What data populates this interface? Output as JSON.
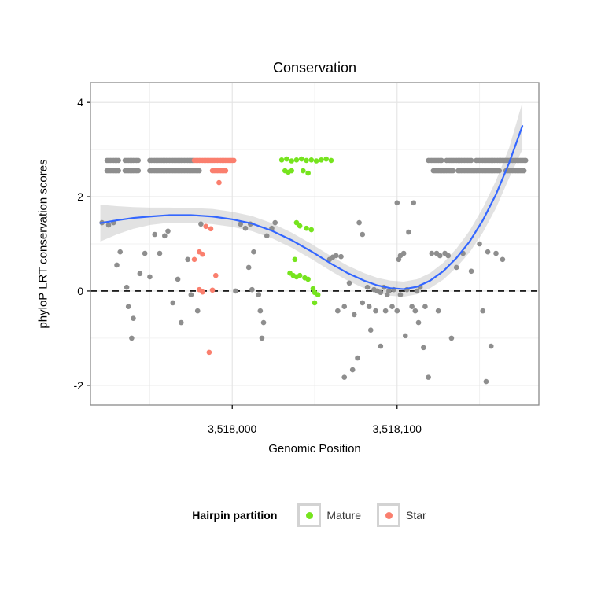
{
  "title": "Conservation",
  "axes": {
    "x": {
      "label": "Genomic Position",
      "ticks": [
        3518000,
        3518100
      ],
      "tick_labels": [
        "3,518,000",
        "3,518,100"
      ],
      "minor_ticks": [
        3517950,
        3518050,
        3518150
      ]
    },
    "y": {
      "label": "phyloP LRT conservation scores",
      "ticks": [
        -2,
        0,
        2,
        4
      ],
      "tick_labels": [
        "-2",
        "0",
        "2",
        "4"
      ],
      "minor_ticks": [
        -1,
        1,
        3
      ]
    }
  },
  "legend": {
    "title": "Hairpin partition",
    "items": [
      {
        "label": "Mature",
        "color": "#76E41E"
      },
      {
        "label": "Star",
        "color": "#FA7F6E"
      }
    ]
  },
  "chart_data": {
    "type": "scatter",
    "title": "Conservation",
    "xlabel": "Genomic Position",
    "ylabel": "phyloP LRT conservation scores",
    "xlim": [
      3517914,
      3518186
    ],
    "ylim": [
      -2.42,
      4.42
    ],
    "grid": true,
    "legend_position": "bottom",
    "reference_line": {
      "y": 0,
      "style": "dashed",
      "color": "#000000"
    },
    "style": {
      "panel_bg": "#FFFFFF",
      "panel_border": "#8A8A8A",
      "grid_major": "#E4E4E4",
      "grid_minor": "#F2F2F2",
      "tick_color": "#000000"
    },
    "series": [
      {
        "name": "unpartitioned",
        "label": "",
        "color": "#8E8E8E",
        "runs": [
          {
            "y": 2.77,
            "x_start": 3517924,
            "x_end": 3517931,
            "step": 1
          },
          {
            "y": 2.77,
            "x_start": 3517935,
            "x_end": 3517943,
            "step": 1
          },
          {
            "y": 2.77,
            "x_start": 3517950,
            "x_end": 3517976,
            "step": 1
          },
          {
            "y": 2.77,
            "x_start": 3518119,
            "x_end": 3518127,
            "step": 1
          },
          {
            "y": 2.77,
            "x_start": 3518130,
            "x_end": 3518145,
            "step": 1
          },
          {
            "y": 2.77,
            "x_start": 3518148,
            "x_end": 3518178,
            "step": 1
          },
          {
            "y": 2.55,
            "x_start": 3517924,
            "x_end": 3517931,
            "step": 1
          },
          {
            "y": 2.55,
            "x_start": 3517935,
            "x_end": 3517943,
            "step": 1
          },
          {
            "y": 2.55,
            "x_start": 3517950,
            "x_end": 3517980,
            "step": 1
          },
          {
            "y": 2.55,
            "x_start": 3518122,
            "x_end": 3518134,
            "step": 1
          },
          {
            "y": 2.55,
            "x_start": 3518137,
            "x_end": 3518162,
            "step": 1
          },
          {
            "y": 2.55,
            "x_start": 3518166,
            "x_end": 3518177,
            "step": 1
          }
        ],
        "points": [
          [
            3517921,
            1.45
          ],
          [
            3517925,
            1.4
          ],
          [
            3517928,
            1.45
          ],
          [
            3517930,
            0.55
          ],
          [
            3517932,
            0.83
          ],
          [
            3517936,
            0.08
          ],
          [
            3517937,
            -0.33
          ],
          [
            3517939,
            -1.0
          ],
          [
            3517940,
            -0.58
          ],
          [
            3517944,
            0.37
          ],
          [
            3517947,
            0.8
          ],
          [
            3517950,
            0.3
          ],
          [
            3517953,
            1.2
          ],
          [
            3517956,
            0.8
          ],
          [
            3517959,
            1.17
          ],
          [
            3517961,
            1.27
          ],
          [
            3517964,
            -0.25
          ],
          [
            3517967,
            0.25
          ],
          [
            3517969,
            -0.67
          ],
          [
            3517973,
            0.67
          ],
          [
            3517975,
            -0.08
          ],
          [
            3517979,
            -0.42
          ],
          [
            3517981,
            1.42
          ],
          [
            3518002,
            0.0
          ],
          [
            3518005,
            1.42
          ],
          [
            3518008,
            1.33
          ],
          [
            3518010,
            0.5
          ],
          [
            3518011,
            1.42
          ],
          [
            3518012,
            0.03
          ],
          [
            3518013,
            0.83
          ],
          [
            3518016,
            -0.08
          ],
          [
            3518017,
            -0.42
          ],
          [
            3518018,
            -1.0
          ],
          [
            3518019,
            -0.67
          ],
          [
            3518021,
            1.17
          ],
          [
            3518024,
            1.33
          ],
          [
            3518026,
            1.45
          ],
          [
            3518059,
            0.67
          ],
          [
            3518061,
            0.72
          ],
          [
            3518063,
            0.75
          ],
          [
            3518064,
            -0.42
          ],
          [
            3518066,
            0.73
          ],
          [
            3518068,
            -0.33
          ],
          [
            3518068,
            -1.83
          ],
          [
            3518071,
            0.17
          ],
          [
            3518073,
            -1.67
          ],
          [
            3518074,
            -0.5
          ],
          [
            3518076,
            -1.42
          ],
          [
            3518077,
            1.45
          ],
          [
            3518079,
            -0.25
          ],
          [
            3518079,
            1.2
          ],
          [
            3518082,
            0.08
          ],
          [
            3518083,
            -0.33
          ],
          [
            3518084,
            -0.83
          ],
          [
            3518086,
            0.03
          ],
          [
            3518087,
            -0.42
          ],
          [
            3518088,
            0.0
          ],
          [
            3518090,
            -1.17
          ],
          [
            3518090,
            -0.03
          ],
          [
            3518092,
            0.08
          ],
          [
            3518093,
            -0.42
          ],
          [
            3518094,
            -0.08
          ],
          [
            3518095,
            0.0
          ],
          [
            3518097,
            -0.33
          ],
          [
            3518098,
            0.03
          ],
          [
            3518100,
            -0.42
          ],
          [
            3518100,
            1.87
          ],
          [
            3518101,
            0.67
          ],
          [
            3518102,
            -0.08
          ],
          [
            3518102,
            0.75
          ],
          [
            3518104,
            0.8
          ],
          [
            3518105,
            -0.95
          ],
          [
            3518106,
            0.03
          ],
          [
            3518107,
            1.25
          ],
          [
            3518109,
            -0.33
          ],
          [
            3518110,
            1.87
          ],
          [
            3518111,
            -0.42
          ],
          [
            3518112,
            0.0
          ],
          [
            3518113,
            -0.67
          ],
          [
            3518114,
            0.08
          ],
          [
            3518116,
            -1.2
          ],
          [
            3518117,
            -0.33
          ],
          [
            3518119,
            -1.83
          ],
          [
            3518121,
            0.8
          ],
          [
            3518124,
            0.8
          ],
          [
            3518125,
            -0.42
          ],
          [
            3518126,
            0.75
          ],
          [
            3518129,
            0.8
          ],
          [
            3518131,
            0.75
          ],
          [
            3518133,
            -1.0
          ],
          [
            3518136,
            0.5
          ],
          [
            3518140,
            0.8
          ],
          [
            3518145,
            0.42
          ],
          [
            3518150,
            1.0
          ],
          [
            3518152,
            -0.42
          ],
          [
            3518154,
            -1.92
          ],
          [
            3518155,
            0.83
          ],
          [
            3518157,
            -1.17
          ],
          [
            3518160,
            0.8
          ],
          [
            3518164,
            0.67
          ]
        ]
      },
      {
        "name": "mature",
        "label": "Mature",
        "color": "#76E41E",
        "runs": [],
        "points": [
          [
            3518030,
            2.78
          ],
          [
            3518033,
            2.8
          ],
          [
            3518036,
            2.76
          ],
          [
            3518039,
            2.78
          ],
          [
            3518042,
            2.8
          ],
          [
            3518045,
            2.77
          ],
          [
            3518048,
            2.78
          ],
          [
            3518051,
            2.76
          ],
          [
            3518054,
            2.78
          ],
          [
            3518057,
            2.8
          ],
          [
            3518060,
            2.77
          ],
          [
            3518032,
            2.55
          ],
          [
            3518034,
            2.52
          ],
          [
            3518036,
            2.55
          ],
          [
            3518043,
            2.55
          ],
          [
            3518046,
            2.5
          ],
          [
            3518039,
            1.45
          ],
          [
            3518041,
            1.38
          ],
          [
            3518045,
            1.33
          ],
          [
            3518048,
            1.3
          ],
          [
            3518038,
            0.67
          ],
          [
            3518035,
            0.38
          ],
          [
            3518037,
            0.33
          ],
          [
            3518039,
            0.3
          ],
          [
            3518041,
            0.33
          ],
          [
            3518044,
            0.28
          ],
          [
            3518046,
            0.25
          ],
          [
            3518049,
            0.05
          ],
          [
            3518050,
            -0.03
          ],
          [
            3518050,
            -0.25
          ],
          [
            3518052,
            -0.08
          ]
        ]
      },
      {
        "name": "star",
        "label": "Star",
        "color": "#FA7F6E",
        "runs": [
          {
            "y": 2.77,
            "x_start": 3517977,
            "x_end": 3518001,
            "step": 1
          },
          {
            "y": 2.55,
            "x_start": 3517988,
            "x_end": 3517996,
            "step": 1
          }
        ],
        "points": [
          [
            3517992,
            2.3
          ],
          [
            3517984,
            1.37
          ],
          [
            3517987,
            1.32
          ],
          [
            3517980,
            0.83
          ],
          [
            3517982,
            0.78
          ],
          [
            3517977,
            0.67
          ],
          [
            3517990,
            0.33
          ],
          [
            3517980,
            0.03
          ],
          [
            3517982,
            -0.02
          ],
          [
            3517988,
            0.02
          ],
          [
            3517986,
            -1.3
          ]
        ]
      }
    ],
    "smooth": {
      "name": "loess-fit",
      "color": "#3366FF",
      "width": 2.2,
      "ribbon_color": "#BEBEBE",
      "ribbon_opacity": 0.45,
      "points": [
        [
          3517920,
          1.44
        ],
        [
          3517930,
          1.5
        ],
        [
          3517940,
          1.55
        ],
        [
          3517950,
          1.58
        ],
        [
          3517962,
          1.61
        ],
        [
          3517975,
          1.61
        ],
        [
          3517988,
          1.58
        ],
        [
          3518000,
          1.52
        ],
        [
          3518012,
          1.43
        ],
        [
          3518024,
          1.28
        ],
        [
          3518036,
          1.08
        ],
        [
          3518048,
          0.84
        ],
        [
          3518060,
          0.58
        ],
        [
          3518070,
          0.38
        ],
        [
          3518080,
          0.22
        ],
        [
          3518088,
          0.12
        ],
        [
          3518096,
          0.06
        ],
        [
          3518104,
          0.04
        ],
        [
          3518112,
          0.09
        ],
        [
          3518120,
          0.22
        ],
        [
          3518128,
          0.42
        ],
        [
          3518136,
          0.7
        ],
        [
          3518144,
          1.05
        ],
        [
          3518152,
          1.5
        ],
        [
          3518160,
          2.05
        ],
        [
          3518168,
          2.72
        ],
        [
          3518176,
          3.5
        ]
      ],
      "ribbon": [
        [
          3517920,
          1.05,
          1.83
        ],
        [
          3517930,
          1.2,
          1.8
        ],
        [
          3517940,
          1.32,
          1.78
        ],
        [
          3517950,
          1.4,
          1.77
        ],
        [
          3517962,
          1.45,
          1.77
        ],
        [
          3517975,
          1.45,
          1.76
        ],
        [
          3517988,
          1.42,
          1.74
        ],
        [
          3518000,
          1.36,
          1.68
        ],
        [
          3518012,
          1.27,
          1.59
        ],
        [
          3518024,
          1.12,
          1.44
        ],
        [
          3518036,
          0.92,
          1.24
        ],
        [
          3518048,
          0.68,
          1.0
        ],
        [
          3518060,
          0.42,
          0.74
        ],
        [
          3518070,
          0.22,
          0.54
        ],
        [
          3518080,
          0.06,
          0.38
        ],
        [
          3518088,
          -0.04,
          0.28
        ],
        [
          3518096,
          -0.1,
          0.22
        ],
        [
          3518104,
          -0.12,
          0.2
        ],
        [
          3518112,
          -0.07,
          0.25
        ],
        [
          3518120,
          0.06,
          0.38
        ],
        [
          3518128,
          0.24,
          0.6
        ],
        [
          3518136,
          0.5,
          0.9
        ],
        [
          3518144,
          0.82,
          1.28
        ],
        [
          3518152,
          1.24,
          1.76
        ],
        [
          3518160,
          1.76,
          2.34
        ],
        [
          3518168,
          2.4,
          3.04
        ],
        [
          3518176,
          3.0,
          4.0
        ]
      ]
    }
  }
}
